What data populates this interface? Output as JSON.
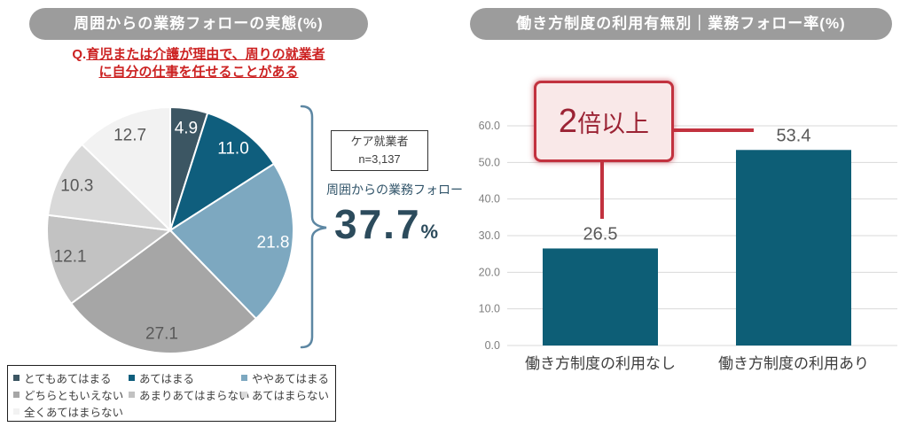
{
  "left_panel": {
    "title": "周囲からの業務フォローの実態(%)",
    "question": {
      "prefix": "Q.",
      "line1": "育児または介護が理由で、周りの就業者",
      "line2": "に自分の仕事を任せることがある"
    },
    "sample_box": {
      "line1": "ケア就業者",
      "line2": "n=3,137"
    },
    "highlight": {
      "label": "周囲からの業務フォロー",
      "value": "37.7",
      "unit": "%"
    }
  },
  "right_panel": {
    "title": "働き方制度の利用有無別｜業務フォロー率(%)",
    "callout": {
      "big": "2",
      "rest": "倍以上"
    }
  },
  "colors": {
    "title_pill_bg": "#9c9c9c",
    "question_red": "#cc2222",
    "highlight_teal": "#2c4b5c",
    "brace_blue": "#5d87a3",
    "bar_teal": "#0d5e76",
    "grid_gray": "#d9d9d9",
    "axis_label_gray": "#7f7f7f",
    "value_label_gray": "#595959",
    "category_label_dark": "#3d3d3d",
    "callout_border_red": "#c2323f",
    "callout_bg_pink": "#f9e8e8",
    "callout_text_red": "#9b2334"
  },
  "chart_data": [
    {
      "type": "pie",
      "title": "周囲からの業務フォローの実態(%)",
      "labels": [
        "とてもあてはまる",
        "あてはまる",
        "ややあてはまる",
        "どちらともいえない",
        "あまりあてはまらない",
        "あてはまらない",
        "全くあてはまらない"
      ],
      "values": [
        4.9,
        11.0,
        21.8,
        27.1,
        12.1,
        10.3,
        12.7
      ],
      "colors": [
        "#3c5663",
        "#0f5e7d",
        "#7da8c0",
        "#a6a6a6",
        "#c2c2c2",
        "#d9d9d9",
        "#f2f2f2"
      ],
      "label_colors": [
        "#ffffff",
        "#ffffff",
        "#ffffff",
        "#595959",
        "#595959",
        "#595959",
        "#595959"
      ],
      "start_angle_deg": 0,
      "direction": "clockwise",
      "legend_position": "bottom-left box",
      "annotation": {
        "bracket_covers": [
          "とてもあてはまる",
          "あてはまる",
          "ややあてはまる"
        ],
        "bracket_label": "周囲からの業務フォロー",
        "bracket_value": "37.7%",
        "sample_note": "ケア就業者 n=3,137"
      }
    },
    {
      "type": "bar",
      "title": "働き方制度の利用有無別｜業務フォロー率(%)",
      "categories": [
        "働き方制度の利用なし",
        "働き方制度の利用あり"
      ],
      "values": [
        26.5,
        53.4
      ],
      "ylim": [
        0,
        60
      ],
      "yticks": [
        0,
        10,
        20,
        30,
        40,
        50,
        60
      ],
      "ytick_format": "one_decimal",
      "grid": true,
      "legend": "none",
      "bar_color": "#0d5e76",
      "annotation": "2倍以上 (利用ありは利用なしの2倍以上)"
    }
  ]
}
